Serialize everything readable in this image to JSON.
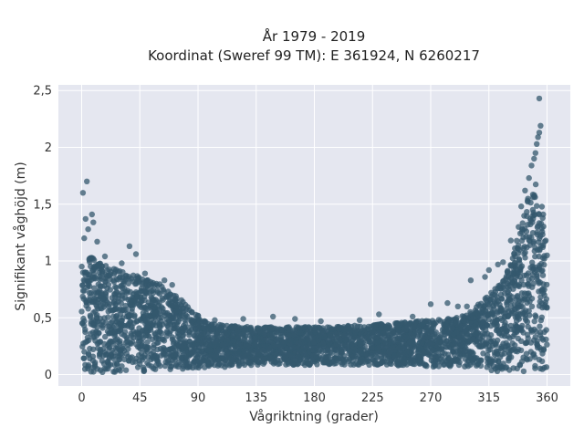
{
  "chart_data": {
    "type": "scatter",
    "title": "År 1979 - 2019",
    "subtitle": "Koordinat (Sweref 99 TM): E 361924, N 6260217",
    "xlabel": "Vågriktning (grader)",
    "ylabel": "Signifikant våghöjd (m)",
    "xlim": [
      -18,
      378
    ],
    "ylim": [
      -0.1,
      2.55
    ],
    "x_ticks": [
      0,
      45,
      90,
      135,
      180,
      225,
      270,
      315,
      360
    ],
    "x_tick_labels": [
      "0",
      "45",
      "90",
      "135",
      "180",
      "225",
      "270",
      "315",
      "360"
    ],
    "y_ticks": [
      0,
      0.5,
      1,
      1.5,
      2,
      2.5
    ],
    "y_tick_labels": [
      "0",
      "0,5",
      "1",
      "1,5",
      "2",
      "2,5"
    ],
    "grid": true,
    "colors": {
      "marker": "#34586e",
      "plot_bg": "#e5e7f0",
      "grid": "#ffffff"
    },
    "envelope": {
      "x": [
        0,
        5,
        20,
        40,
        60,
        75,
        90,
        100,
        135,
        180,
        225,
        270,
        290,
        300,
        310,
        320,
        330,
        340,
        345,
        350,
        355,
        360
      ],
      "y_max": [
        1.0,
        1.05,
        0.95,
        0.88,
        0.8,
        0.68,
        0.52,
        0.45,
        0.42,
        0.42,
        0.44,
        0.48,
        0.5,
        0.55,
        0.65,
        0.78,
        0.95,
        1.3,
        1.55,
        1.7,
        1.6,
        1.1
      ],
      "y_min": [
        0.02,
        0.02,
        0.02,
        0.03,
        0.03,
        0.04,
        0.05,
        0.06,
        0.08,
        0.08,
        0.08,
        0.07,
        0.06,
        0.05,
        0.04,
        0.03,
        0.03,
        0.02,
        0.02,
        0.02,
        0.02,
        0.02
      ]
    },
    "outliers": [
      {
        "x": 1,
        "y": 1.6
      },
      {
        "x": 4,
        "y": 1.7
      },
      {
        "x": 3,
        "y": 1.37
      },
      {
        "x": 8,
        "y": 1.41
      },
      {
        "x": 9,
        "y": 1.34
      },
      {
        "x": 5,
        "y": 1.28
      },
      {
        "x": 2,
        "y": 1.2
      },
      {
        "x": 12,
        "y": 1.17
      },
      {
        "x": 37,
        "y": 1.13
      },
      {
        "x": 18,
        "y": 1.04
      },
      {
        "x": 42,
        "y": 1.06
      },
      {
        "x": 31,
        "y": 0.98
      },
      {
        "x": 25,
        "y": 0.93
      },
      {
        "x": 49,
        "y": 0.89
      },
      {
        "x": 64,
        "y": 0.83
      },
      {
        "x": 70,
        "y": 0.79
      },
      {
        "x": 103,
        "y": 0.48
      },
      {
        "x": 125,
        "y": 0.49
      },
      {
        "x": 148,
        "y": 0.51
      },
      {
        "x": 165,
        "y": 0.49
      },
      {
        "x": 185,
        "y": 0.47
      },
      {
        "x": 215,
        "y": 0.48
      },
      {
        "x": 230,
        "y": 0.53
      },
      {
        "x": 256,
        "y": 0.51
      },
      {
        "x": 270,
        "y": 0.62
      },
      {
        "x": 283,
        "y": 0.63
      },
      {
        "x": 291,
        "y": 0.6
      },
      {
        "x": 298,
        "y": 0.6
      },
      {
        "x": 301,
        "y": 0.83
      },
      {
        "x": 312,
        "y": 0.86
      },
      {
        "x": 315,
        "y": 0.92
      },
      {
        "x": 322,
        "y": 0.97
      },
      {
        "x": 326,
        "y": 0.99
      },
      {
        "x": 332,
        "y": 1.18
      },
      {
        "x": 338,
        "y": 1.3
      },
      {
        "x": 340,
        "y": 1.48
      },
      {
        "x": 343,
        "y": 1.62
      },
      {
        "x": 346,
        "y": 1.73
      },
      {
        "x": 348,
        "y": 1.84
      },
      {
        "x": 350,
        "y": 1.9
      },
      {
        "x": 351,
        "y": 1.95
      },
      {
        "x": 352,
        "y": 2.03
      },
      {
        "x": 353,
        "y": 2.09
      },
      {
        "x": 354,
        "y": 2.13
      },
      {
        "x": 355,
        "y": 2.19
      },
      {
        "x": 354,
        "y": 2.43
      },
      {
        "x": 357,
        "y": 1.41
      },
      {
        "x": 359,
        "y": 1.18
      },
      {
        "x": 360,
        "y": 1.05
      },
      {
        "x": 358,
        "y": 1.02
      }
    ]
  }
}
